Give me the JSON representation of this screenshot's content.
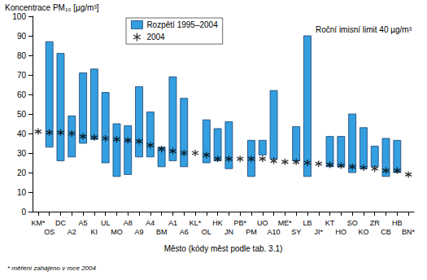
{
  "chart_data": {
    "type": "range_bar",
    "y_label": "Koncentrace PM₁₀ [µg/m³]",
    "x_label": "Město (kódy měst podle tab. 3.1)",
    "annotation": "Roční imisní limit 40 µg/m³",
    "footnote": "* měření zahájeno v roce 2004",
    "categories": [
      "KM*",
      "OS",
      "DC",
      "A2",
      "A5",
      "KI",
      "UL",
      "MO",
      "A8",
      "A9",
      "A4",
      "BM",
      "A1",
      "A6",
      "KL*",
      "OL",
      "HK",
      "JN",
      "PB*",
      "PM",
      "UO",
      "A10",
      "ME*",
      "SY",
      "LB",
      "JI*",
      "KT",
      "HO",
      "SO",
      "KO",
      "ZR",
      "CB",
      "HB",
      "BN*"
    ],
    "series": [
      {
        "name": "Rozpětí 1995–2004",
        "type": "range",
        "color": "#339fe0",
        "low": [
          null,
          33,
          26,
          28,
          35,
          37,
          25,
          18,
          19,
          28,
          28,
          23,
          26,
          23,
          null,
          25,
          26,
          22,
          null,
          18,
          29,
          27,
          null,
          26,
          18,
          null,
          23,
          23,
          20,
          22,
          23,
          18,
          20,
          null
        ],
        "high": [
          null,
          87,
          81,
          49,
          71,
          73,
          61,
          45,
          44,
          64,
          51,
          33,
          69,
          58,
          null,
          47,
          42.5,
          46,
          null,
          36.5,
          36.5,
          62,
          null,
          43.5,
          90,
          null,
          38.5,
          38.5,
          50,
          43,
          33.5,
          37.5,
          36.5,
          null
        ]
      },
      {
        "name": "2004",
        "type": "scatter",
        "marker": "asterisk",
        "color": "#000000",
        "values": [
          41,
          40.5,
          40.5,
          40,
          38.5,
          38,
          37.5,
          37,
          36.5,
          36,
          34,
          32,
          31,
          30,
          30,
          29,
          27,
          27,
          27,
          27,
          27,
          26,
          25.5,
          25.5,
          25,
          24.5,
          24,
          23.5,
          23,
          22.5,
          22,
          21,
          21,
          19
        ]
      }
    ],
    "ylim": [
      0,
      100
    ],
    "yticks": [
      0,
      10,
      20,
      30,
      40,
      50,
      60,
      70,
      80,
      90,
      100
    ],
    "grid": false,
    "legend": "top-left"
  }
}
